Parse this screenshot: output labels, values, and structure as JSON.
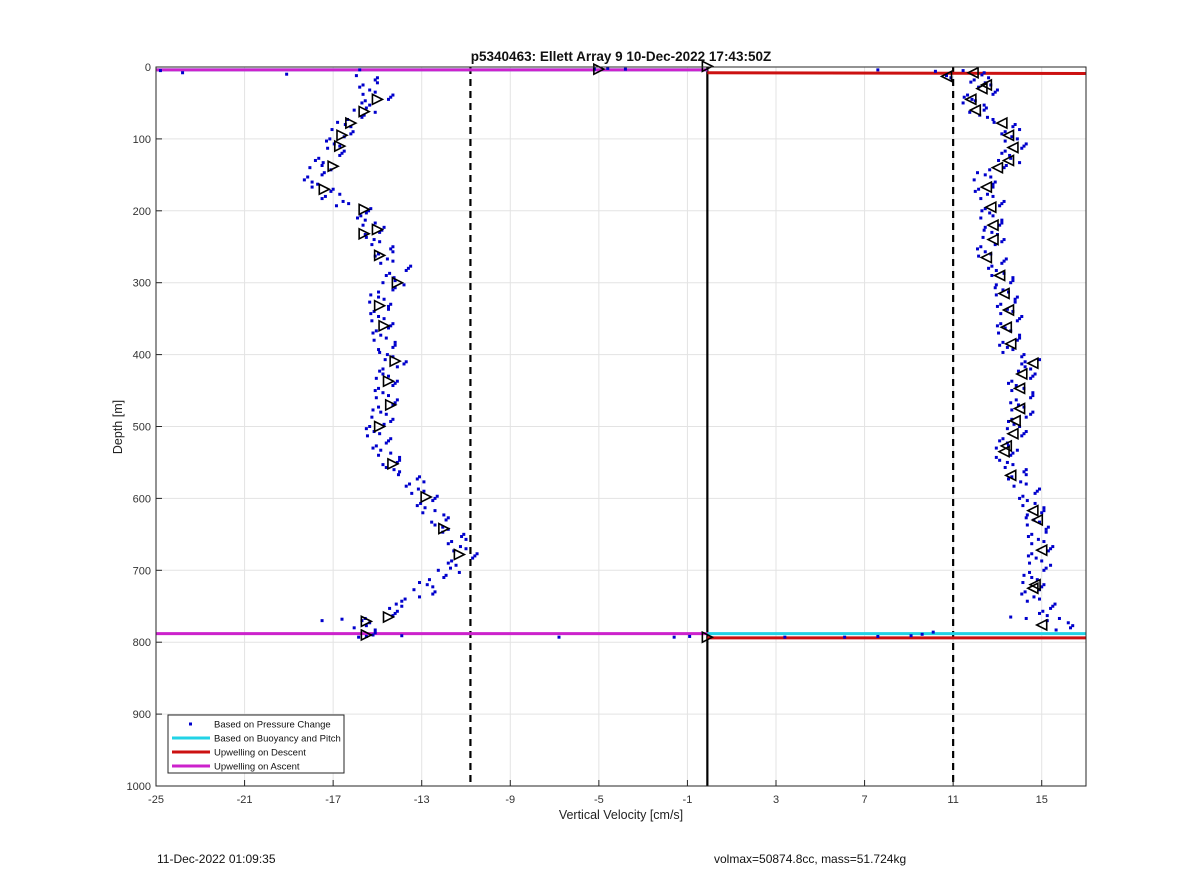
{
  "chart_data": {
    "type": "scatter",
    "title": "p5340463: Ellett Array 9 10-Dec-2022 17:43:50Z",
    "xlabel": "Vertical Velocity [cm/s]",
    "ylabel": "Depth [m]",
    "xlim": [
      -25,
      17
    ],
    "ylim": [
      0,
      1000
    ],
    "y_reversed": true,
    "grid": true,
    "xticks": [
      -25,
      -21,
      -17,
      -13,
      -9,
      -5,
      -1,
      3,
      7,
      11,
      15
    ],
    "yticks": [
      0,
      100,
      200,
      300,
      400,
      500,
      600,
      700,
      800,
      900,
      1000
    ],
    "legend_placement": "bottom-left",
    "legend": [
      {
        "label": "Based on Pressure Change",
        "color": "#0000cc",
        "style": "dot"
      },
      {
        "label": "Based on Buoyancy and Pitch",
        "color": "#22d3e6",
        "style": "line"
      },
      {
        "label": "Upwelling on Descent",
        "color": "#cc1111",
        "style": "line"
      },
      {
        "label": "Upwelling on Ascent",
        "color": "#cc22cc",
        "style": "line"
      }
    ],
    "reference_lines": {
      "solid_vertical_x": -0.1,
      "dashed_vertical_x": [
        -10.8,
        11.0
      ]
    },
    "series": [
      {
        "name": "Based on Pressure Change",
        "color": "#0000cc",
        "ascent_profile": [
          [
            -15.5,
            15
          ],
          [
            -15.3,
            25
          ],
          [
            -15.2,
            35
          ],
          [
            -14.8,
            42
          ],
          [
            -15.2,
            50
          ],
          [
            -15.6,
            60
          ],
          [
            -16.0,
            70
          ],
          [
            -16.3,
            80
          ],
          [
            -16.6,
            90
          ],
          [
            -16.8,
            100
          ],
          [
            -16.8,
            110
          ],
          [
            -17.0,
            120
          ],
          [
            -17.3,
            130
          ],
          [
            -17.6,
            140
          ],
          [
            -17.8,
            150
          ],
          [
            -17.8,
            160
          ],
          [
            -17.5,
            170
          ],
          [
            -17.0,
            180
          ],
          [
            -16.4,
            190
          ],
          [
            -15.8,
            200
          ],
          [
            -15.4,
            210
          ],
          [
            -15.2,
            220
          ],
          [
            -15.2,
            230
          ],
          [
            -15.0,
            240
          ],
          [
            -14.8,
            250
          ],
          [
            -14.6,
            260
          ],
          [
            -14.4,
            270
          ],
          [
            -14.0,
            280
          ],
          [
            -14.1,
            290
          ],
          [
            -14.3,
            300
          ],
          [
            -14.6,
            310
          ],
          [
            -14.8,
            320
          ],
          [
            -14.9,
            330
          ],
          [
            -14.8,
            340
          ],
          [
            -14.8,
            350
          ],
          [
            -14.8,
            360
          ],
          [
            -14.7,
            370
          ],
          [
            -14.7,
            380
          ],
          [
            -14.6,
            390
          ],
          [
            -14.4,
            400
          ],
          [
            -14.2,
            410
          ],
          [
            -14.4,
            420
          ],
          [
            -14.6,
            430
          ],
          [
            -14.6,
            440
          ],
          [
            -14.6,
            450
          ],
          [
            -14.6,
            460
          ],
          [
            -14.6,
            470
          ],
          [
            -14.7,
            480
          ],
          [
            -14.8,
            490
          ],
          [
            -15.0,
            500
          ],
          [
            -15.0,
            510
          ],
          [
            -14.9,
            520
          ],
          [
            -14.7,
            530
          ],
          [
            -14.5,
            540
          ],
          [
            -14.4,
            550
          ],
          [
            -14.1,
            560
          ],
          [
            -13.6,
            570
          ],
          [
            -13.2,
            580
          ],
          [
            -13.0,
            590
          ],
          [
            -12.8,
            600
          ],
          [
            -12.7,
            610
          ],
          [
            -12.5,
            620
          ],
          [
            -12.2,
            630
          ],
          [
            -11.9,
            640
          ],
          [
            -11.6,
            650
          ],
          [
            -11.3,
            660
          ],
          [
            -11.1,
            670
          ],
          [
            -11.0,
            680
          ],
          [
            -11.3,
            690
          ],
          [
            -11.8,
            700
          ],
          [
            -12.3,
            710
          ],
          [
            -12.6,
            720
          ],
          [
            -12.9,
            730
          ],
          [
            -13.4,
            740
          ],
          [
            -14.0,
            750
          ],
          [
            -14.6,
            760
          ],
          [
            -15.2,
            770
          ],
          [
            -15.6,
            780
          ],
          [
            -15.5,
            790
          ]
        ],
        "descent_profile": [
          [
            11.9,
            8
          ],
          [
            12.3,
            18
          ],
          [
            12.6,
            25
          ],
          [
            12.5,
            35
          ],
          [
            12.0,
            42
          ],
          [
            11.9,
            50
          ],
          [
            12.1,
            60
          ],
          [
            12.7,
            70
          ],
          [
            13.3,
            80
          ],
          [
            13.7,
            90
          ],
          [
            13.8,
            100
          ],
          [
            13.8,
            110
          ],
          [
            13.7,
            120
          ],
          [
            13.5,
            130
          ],
          [
            13.0,
            140
          ],
          [
            12.6,
            150
          ],
          [
            12.4,
            160
          ],
          [
            12.5,
            170
          ],
          [
            12.7,
            180
          ],
          [
            12.8,
            190
          ],
          [
            12.8,
            200
          ],
          [
            12.7,
            210
          ],
          [
            12.8,
            220
          ],
          [
            12.9,
            230
          ],
          [
            12.8,
            240
          ],
          [
            12.6,
            250
          ],
          [
            12.6,
            260
          ],
          [
            12.9,
            270
          ],
          [
            13.1,
            280
          ],
          [
            13.2,
            290
          ],
          [
            13.3,
            300
          ],
          [
            13.4,
            310
          ],
          [
            13.4,
            320
          ],
          [
            13.5,
            330
          ],
          [
            13.6,
            340
          ],
          [
            13.6,
            350
          ],
          [
            13.5,
            360
          ],
          [
            13.5,
            370
          ],
          [
            13.6,
            380
          ],
          [
            13.6,
            390
          ],
          [
            13.7,
            400
          ],
          [
            14.6,
            410
          ],
          [
            14.4,
            420
          ],
          [
            14.2,
            430
          ],
          [
            14.0,
            440
          ],
          [
            14.1,
            450
          ],
          [
            14.2,
            460
          ],
          [
            14.1,
            470
          ],
          [
            14.1,
            480
          ],
          [
            14.0,
            490
          ],
          [
            13.9,
            500
          ],
          [
            13.8,
            510
          ],
          [
            13.6,
            520
          ],
          [
            13.4,
            530
          ],
          [
            13.3,
            540
          ],
          [
            13.6,
            550
          ],
          [
            13.8,
            560
          ],
          [
            14.0,
            570
          ],
          [
            14.2,
            580
          ],
          [
            14.4,
            590
          ],
          [
            14.5,
            600
          ],
          [
            14.6,
            610
          ],
          [
            14.7,
            620
          ],
          [
            14.8,
            630
          ],
          [
            14.8,
            640
          ],
          [
            14.9,
            650
          ],
          [
            15.0,
            660
          ],
          [
            15.0,
            670
          ],
          [
            14.9,
            680
          ],
          [
            14.9,
            690
          ],
          [
            14.8,
            700
          ],
          [
            14.7,
            710
          ],
          [
            14.6,
            720
          ],
          [
            14.6,
            730
          ],
          [
            14.8,
            740
          ],
          [
            15.1,
            750
          ],
          [
            15.4,
            760
          ],
          [
            15.7,
            770
          ],
          [
            16.0,
            780
          ]
        ],
        "outliers": [
          [
            -24.8,
            5
          ],
          [
            -23.8,
            8
          ],
          [
            -19.1,
            10
          ],
          [
            -15.8,
            4
          ],
          [
            -5.2,
            3
          ],
          [
            -4.6,
            2
          ],
          [
            -3.8,
            3
          ],
          [
            7.6,
            4
          ],
          [
            10.2,
            6
          ],
          [
            10.7,
            12
          ],
          [
            10.9,
            15
          ],
          [
            -6.8,
            793
          ],
          [
            -1.6,
            793
          ],
          [
            -0.9,
            792
          ],
          [
            3.4,
            793
          ],
          [
            6.1,
            793
          ],
          [
            7.6,
            792
          ],
          [
            9.1,
            791
          ],
          [
            9.6,
            789
          ],
          [
            10.1,
            786
          ],
          [
            -13.9,
            791
          ],
          [
            -15.5,
            792
          ],
          [
            13.6,
            765
          ],
          [
            14.3,
            767
          ],
          [
            -16.6,
            768
          ],
          [
            -17.5,
            770
          ]
        ]
      },
      {
        "name": "Based on Buoyancy and Pitch",
        "color": "#22d3e6",
        "segments": [
          [
            [
              -25,
              4
            ],
            [
              -0.1,
              4
            ]
          ],
          [
            [
              -0.1,
              788
            ],
            [
              17,
              788
            ]
          ]
        ]
      },
      {
        "name": "Upwelling on Descent",
        "color": "#cc1111",
        "segments": [
          [
            [
              -0.1,
              8
            ],
            [
              17,
              9
            ]
          ],
          [
            [
              -0.1,
              794
            ],
            [
              17,
              794
            ]
          ]
        ]
      },
      {
        "name": "Upwelling on Ascent",
        "color": "#cc22cc",
        "segments": [
          [
            [
              -25,
              4
            ],
            [
              -0.1,
              4
            ]
          ],
          [
            [
              -25,
              788
            ],
            [
              -0.1,
              788
            ]
          ]
        ]
      }
    ],
    "markers": {
      "ascent_triangles_left": [
        [
          -5.0,
          3
        ],
        [
          -15.0,
          45
        ],
        [
          -15.6,
          62
        ],
        [
          -16.2,
          78
        ],
        [
          -16.6,
          95
        ],
        [
          -16.7,
          110
        ],
        [
          -17.0,
          138
        ],
        [
          -17.4,
          170
        ],
        [
          -15.6,
          198
        ],
        [
          -15.0,
          226
        ],
        [
          -15.6,
          232
        ],
        [
          -14.9,
          262
        ],
        [
          -14.1,
          300
        ],
        [
          -14.9,
          332
        ],
        [
          -14.7,
          360
        ],
        [
          -14.2,
          409
        ],
        [
          -14.5,
          437
        ],
        [
          -14.4,
          470
        ],
        [
          -14.9,
          500
        ],
        [
          -14.3,
          552
        ],
        [
          -12.8,
          598
        ],
        [
          -12.0,
          642
        ],
        [
          -11.3,
          678
        ],
        [
          -14.5,
          765
        ],
        [
          -15.5,
          771
        ],
        [
          -15.5,
          790
        ]
      ],
      "ascent_triangles_right": [
        [
          -0.1,
          -1
        ],
        [
          -0.1,
          793
        ]
      ],
      "descent_triangles_left": [
        [
          11.9,
          8
        ],
        [
          10.7,
          13
        ],
        [
          12.5,
          25
        ],
        [
          12.3,
          30
        ],
        [
          11.8,
          45
        ],
        [
          12.0,
          60
        ],
        [
          13.2,
          78
        ],
        [
          13.5,
          95
        ],
        [
          13.7,
          112
        ],
        [
          13.5,
          130
        ],
        [
          13.0,
          140
        ],
        [
          12.5,
          167
        ],
        [
          12.7,
          195
        ],
        [
          12.8,
          220
        ],
        [
          12.8,
          240
        ],
        [
          12.5,
          265
        ],
        [
          13.1,
          290
        ],
        [
          13.3,
          315
        ],
        [
          13.5,
          338
        ],
        [
          13.4,
          362
        ],
        [
          13.6,
          385
        ],
        [
          14.6,
          412
        ],
        [
          14.1,
          427
        ],
        [
          14.0,
          447
        ],
        [
          14.0,
          475
        ],
        [
          13.8,
          492
        ],
        [
          13.7,
          510
        ],
        [
          13.4,
          527
        ],
        [
          13.3,
          535
        ],
        [
          13.6,
          568
        ],
        [
          14.6,
          617
        ],
        [
          14.8,
          630
        ],
        [
          15.0,
          672
        ],
        [
          14.7,
          720
        ],
        [
          14.6,
          725
        ],
        [
          15.0,
          776
        ]
      ]
    }
  },
  "footer": {
    "timestamp": "11-Dec-2022 01:09:35",
    "info": "volmax=50874.8cc, mass=51.724kg"
  }
}
